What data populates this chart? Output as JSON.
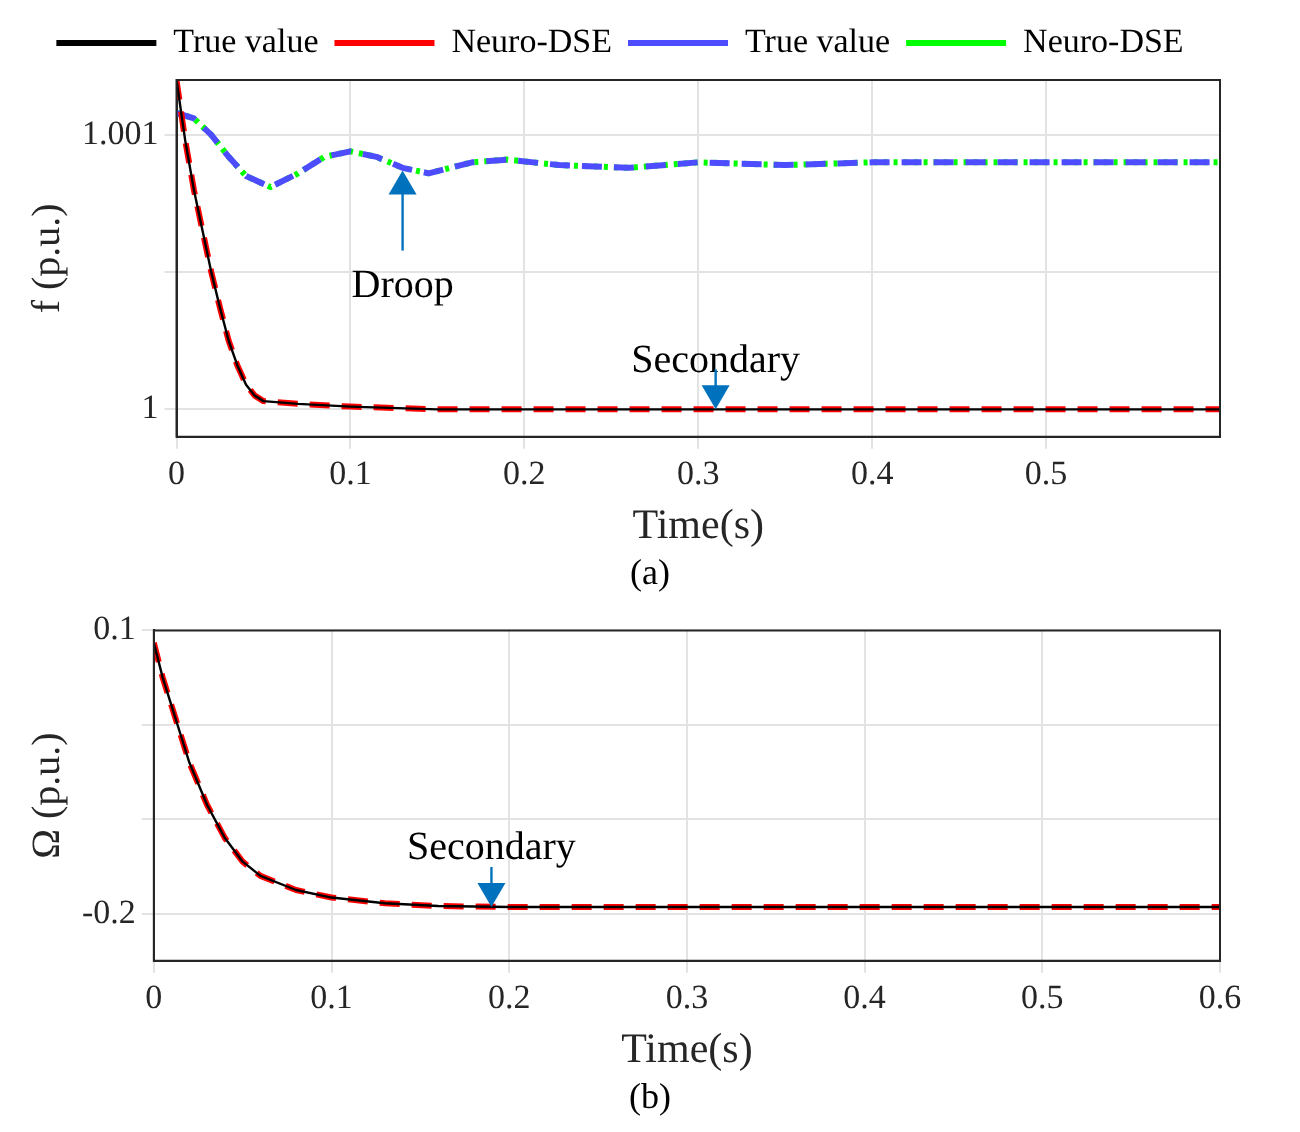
{
  "chart_data": [
    {
      "type": "line",
      "xlabel": "Time(s)",
      "ylabel": "f (p.u.)",
      "xlim": [
        0,
        0.6
      ],
      "xticks": [
        0,
        0.1,
        0.2,
        0.3,
        0.4,
        0.5
      ],
      "ylim": [
        0.9999,
        1.0012
      ],
      "yticks": [
        1,
        {
          "value": 1.0005,
          "label": null
        },
        1.001
      ],
      "grid": true,
      "legend": "top",
      "marker": "none",
      "series": [
        {
          "name": "True value",
          "color": "#000000",
          "line_style": "solid",
          "x": [
            0,
            0.005,
            0.01,
            0.015,
            0.02,
            0.025,
            0.03,
            0.035,
            0.04,
            0.045,
            0.05,
            0.07,
            0.1,
            0.15,
            0.6
          ],
          "values": [
            1.0012,
            1.00098,
            1.0008,
            1.00065,
            1.0005,
            1.00037,
            1.00025,
            1.00016,
            1.00009,
            1.00005,
            1.00003,
            1.00002,
            1.00001,
            1.0,
            1.0
          ]
        },
        {
          "name": "Neuro-DSE",
          "color": "#ff0000",
          "line_style": "dashed",
          "x": [
            0,
            0.005,
            0.01,
            0.015,
            0.02,
            0.025,
            0.03,
            0.035,
            0.04,
            0.045,
            0.05,
            0.07,
            0.1,
            0.15,
            0.6
          ],
          "values": [
            1.0012,
            1.00098,
            1.0008,
            1.00065,
            1.0005,
            1.00037,
            1.00025,
            1.00016,
            1.00009,
            1.00005,
            1.00003,
            1.00002,
            1.00001,
            1.0,
            1.0
          ]
        },
        {
          "name": "True value",
          "color": "#4d4dff",
          "line_style": "dashed",
          "x": [
            0,
            0.01,
            0.02,
            0.03,
            0.04,
            0.054,
            0.07,
            0.085,
            0.1,
            0.115,
            0.13,
            0.145,
            0.17,
            0.19,
            0.22,
            0.26,
            0.3,
            0.35,
            0.4,
            0.5,
            0.6
          ],
          "values": [
            1.00108,
            1.00106,
            1.001,
            1.00092,
            1.00085,
            1.00081,
            1.00086,
            1.00092,
            1.00094,
            1.00092,
            1.00088,
            1.00086,
            1.0009,
            1.00091,
            1.00089,
            1.00088,
            1.0009,
            1.00089,
            1.0009,
            1.0009,
            1.0009
          ]
        },
        {
          "name": "Neuro-DSE",
          "color": "#00ff00",
          "line_style": "dotted",
          "x": [
            0,
            0.01,
            0.02,
            0.03,
            0.04,
            0.054,
            0.07,
            0.085,
            0.1,
            0.115,
            0.13,
            0.145,
            0.17,
            0.19,
            0.22,
            0.26,
            0.3,
            0.35,
            0.4,
            0.5,
            0.6
          ],
          "values": [
            1.00108,
            1.00106,
            1.001,
            1.00092,
            1.00085,
            1.00081,
            1.00086,
            1.00092,
            1.00094,
            1.00092,
            1.00088,
            1.00086,
            1.0009,
            1.00091,
            1.00089,
            1.00088,
            1.0009,
            1.00089,
            1.0009,
            1.0009,
            1.0009
          ]
        }
      ],
      "annotations": [
        {
          "text": "Droop",
          "x": 0.13,
          "y": 1.00087
        },
        {
          "text": "Secondary",
          "x": 0.31,
          "y": 1.0
        },
        "(a)"
      ]
    },
    {
      "type": "line",
      "xlabel": "Time(s)",
      "ylabel": "Ω (p.u.)",
      "xlim": [
        0,
        0.6
      ],
      "xticks": [
        0,
        0.1,
        0.2,
        0.3,
        0.4,
        0.5,
        0.6
      ],
      "ylim": [
        -0.25,
        0.1
      ],
      "yticks": [
        -0.2,
        {
          "value": -0.1,
          "label": null
        },
        {
          "value": 0,
          "label": null
        },
        0.1
      ],
      "grid": true,
      "marker": "none",
      "series": [
        {
          "color": "#000000",
          "line_style": "solid",
          "x": [
            0,
            0.005,
            0.01,
            0.015,
            0.02,
            0.03,
            0.04,
            0.05,
            0.06,
            0.08,
            0.1,
            0.13,
            0.16,
            0.2,
            0.6
          ],
          "values": [
            0.087,
            0.05,
            0.02,
            -0.01,
            -0.04,
            -0.085,
            -0.12,
            -0.145,
            -0.16,
            -0.175,
            -0.183,
            -0.189,
            -0.192,
            -0.193,
            -0.193
          ]
        },
        {
          "color": "#ff0000",
          "line_style": "dashed",
          "x": [
            0,
            0.005,
            0.01,
            0.015,
            0.02,
            0.03,
            0.04,
            0.05,
            0.06,
            0.08,
            0.1,
            0.13,
            0.16,
            0.2,
            0.6
          ],
          "values": [
            0.087,
            0.05,
            0.02,
            -0.01,
            -0.04,
            -0.085,
            -0.12,
            -0.145,
            -0.16,
            -0.175,
            -0.183,
            -0.189,
            -0.192,
            -0.193,
            -0.193
          ]
        }
      ],
      "annotations": [
        {
          "text": "Secondary",
          "x": 0.19,
          "y": -0.193
        },
        "(b)"
      ]
    }
  ]
}
